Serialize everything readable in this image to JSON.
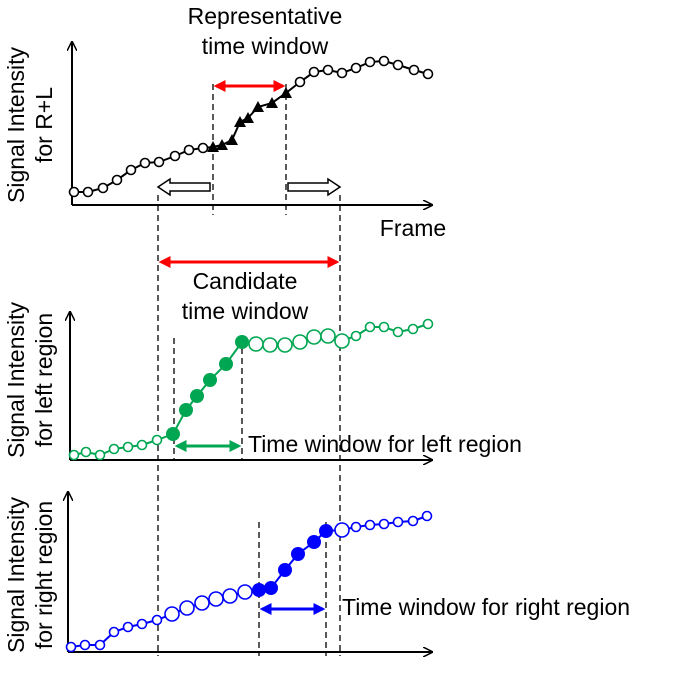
{
  "panels": [
    {
      "y_label": [
        "Signal Intensity",
        "for R+L"
      ],
      "x_label": "Frame",
      "annotation": [
        "Representative",
        "time window"
      ]
    },
    {
      "y_label": [
        "Signal Intensity",
        "for left region"
      ],
      "annotation": "Time window for left region"
    },
    {
      "y_label": [
        "Signal Intensity",
        "for right region"
      ],
      "annotation": "Time window for right region"
    }
  ],
  "candidate_window": [
    "Candidate",
    "time window"
  ]
}
